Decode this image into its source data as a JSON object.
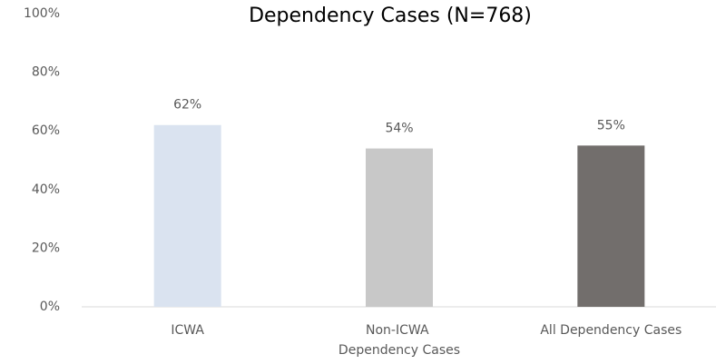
{
  "chart_data": {
    "type": "bar",
    "title": "Dependency Cases (N=768)",
    "categories": [
      "ICWA",
      "Non-ICWA Dependency Cases",
      "All Dependency Cases"
    ],
    "values": [
      62,
      54,
      55
    ],
    "value_labels": [
      "62%",
      "54%",
      "55%"
    ],
    "colors": [
      "#dae3f0",
      "#c8c8c8",
      "#726e6c"
    ],
    "ylim": [
      0,
      100
    ],
    "yticks": [
      {
        "value": 0,
        "label": "0%"
      },
      {
        "value": 20,
        "label": "20%"
      },
      {
        "value": 40,
        "label": "40%"
      },
      {
        "value": 60,
        "label": "60%"
      },
      {
        "value": 80,
        "label": "80%"
      },
      {
        "value": 100,
        "label": "100%"
      }
    ],
    "grid": false
  }
}
